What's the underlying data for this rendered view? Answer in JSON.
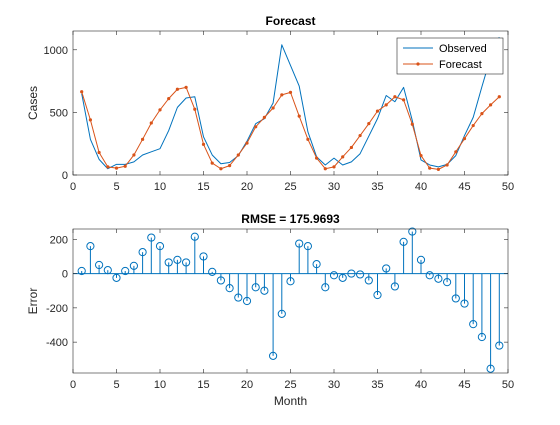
{
  "colors": {
    "observed": "#0072BD",
    "forecast": "#D95319",
    "stem": "#0072BD",
    "axis": "#262626"
  },
  "chart_data": [
    {
      "type": "line",
      "title": "Forecast",
      "xlabel": "",
      "ylabel": "Cases",
      "xlim": [
        0,
        50
      ],
      "ylim": [
        0,
        1150
      ],
      "xticks": [
        0,
        5,
        10,
        15,
        20,
        25,
        30,
        35,
        40,
        45,
        50
      ],
      "yticks": [
        0,
        500,
        1000
      ],
      "x_tick_labels": [
        "0",
        "5",
        "10",
        "15",
        "20",
        "25",
        "30",
        "35",
        "40",
        "45",
        "50"
      ],
      "y_tick_labels": [
        "0",
        "500",
        "1000"
      ],
      "legend_position": "top-right",
      "grid": false,
      "series": [
        {
          "name": "Observed",
          "marker": "none",
          "x": [
            1,
            2,
            3,
            4,
            5,
            6,
            7,
            8,
            9,
            10,
            11,
            12,
            13,
            14,
            15,
            16,
            17,
            18,
            19,
            20,
            21,
            22,
            23,
            24,
            25,
            26,
            27,
            28,
            29,
            30,
            31,
            32,
            33,
            34,
            35,
            36,
            37,
            38,
            39,
            40,
            41,
            42,
            43,
            44,
            45,
            46,
            47,
            48,
            49
          ],
          "values": [
            650,
            285,
            125,
            50,
            85,
            85,
            105,
            160,
            185,
            210,
            355,
            540,
            615,
            625,
            305,
            160,
            90,
            100,
            155,
            270,
            410,
            450,
            575,
            1040,
            875,
            710,
            345,
            145,
            80,
            135,
            80,
            105,
            170,
            310,
            450,
            635,
            585,
            700,
            435,
            120,
            80,
            65,
            85,
            155,
            315,
            460,
            705,
            940,
            1100
          ]
        },
        {
          "name": "Forecast",
          "marker": "dot",
          "x": [
            1,
            2,
            3,
            4,
            5,
            6,
            7,
            8,
            9,
            10,
            11,
            12,
            13,
            14,
            15,
            16,
            17,
            18,
            19,
            20,
            21,
            22,
            23,
            24,
            25,
            26,
            27,
            28,
            29,
            30,
            31,
            32,
            33,
            34,
            35,
            36,
            37,
            38,
            39,
            40,
            41,
            42,
            43,
            44,
            45,
            46,
            47,
            48,
            49
          ],
          "values": [
            665,
            440,
            180,
            65,
            55,
            70,
            160,
            285,
            415,
            520,
            610,
            685,
            700,
            525,
            245,
            95,
            50,
            75,
            160,
            255,
            385,
            460,
            535,
            640,
            660,
            470,
            285,
            135,
            50,
            65,
            145,
            220,
            315,
            410,
            510,
            560,
            625,
            600,
            405,
            155,
            55,
            45,
            80,
            185,
            290,
            395,
            490,
            560,
            625
          ]
        }
      ]
    },
    {
      "type": "stem",
      "title": "RMSE = 175.9693",
      "xlabel": "Month",
      "ylabel": "Error",
      "xlim": [
        0,
        50
      ],
      "ylim": [
        -580,
        260
      ],
      "xticks": [
        0,
        5,
        10,
        15,
        20,
        25,
        30,
        35,
        40,
        45,
        50
      ],
      "yticks": [
        -400,
        -200,
        0,
        200
      ],
      "x_tick_labels": [
        "0",
        "5",
        "10",
        "15",
        "20",
        "25",
        "30",
        "35",
        "40",
        "45",
        "50"
      ],
      "y_tick_labels": [
        "-400",
        "-200",
        "0",
        "200"
      ],
      "grid": false,
      "x": [
        1,
        2,
        3,
        4,
        5,
        6,
        7,
        8,
        9,
        10,
        11,
        12,
        13,
        14,
        15,
        16,
        17,
        18,
        19,
        20,
        21,
        22,
        23,
        24,
        25,
        26,
        27,
        28,
        29,
        30,
        31,
        32,
        33,
        34,
        35,
        36,
        37,
        38,
        39,
        40,
        41,
        42,
        43,
        44,
        45,
        46,
        47,
        48,
        49
      ],
      "values": [
        15,
        160,
        50,
        20,
        -25,
        15,
        45,
        125,
        210,
        160,
        65,
        80,
        65,
        215,
        100,
        10,
        -40,
        -85,
        -140,
        -160,
        -80,
        -100,
        -480,
        -235,
        -45,
        175,
        160,
        55,
        -80,
        -10,
        -25,
        0,
        -5,
        -40,
        -125,
        30,
        -75,
        185,
        245,
        80,
        -10,
        -30,
        -50,
        -145,
        -175,
        -295,
        -370,
        -555,
        -420
      ]
    }
  ]
}
